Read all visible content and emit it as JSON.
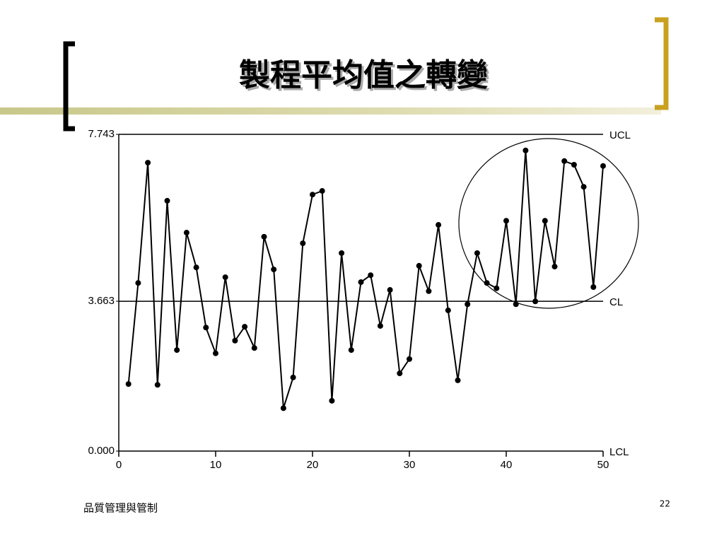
{
  "header": {
    "title": "製程平均值之轉變"
  },
  "chart_data": {
    "type": "line",
    "x": [
      1,
      2,
      3,
      4,
      5,
      6,
      7,
      8,
      9,
      10,
      11,
      12,
      13,
      14,
      15,
      16,
      17,
      18,
      19,
      20,
      21,
      22,
      23,
      24,
      25,
      26,
      27,
      28,
      29,
      30,
      31,
      32,
      33,
      34,
      35,
      36,
      37,
      38,
      39,
      40,
      41,
      42,
      43,
      44,
      45,
      46,
      47,
      48,
      49,
      50
    ],
    "values": [
      1.64,
      4.11,
      7.05,
      1.62,
      6.12,
      2.47,
      5.34,
      4.49,
      3.02,
      2.39,
      4.25,
      2.7,
      3.04,
      2.52,
      5.24,
      4.44,
      1.05,
      1.8,
      5.08,
      6.27,
      6.36,
      1.23,
      4.84,
      2.47,
      4.13,
      4.3,
      3.06,
      3.94,
      1.9,
      2.25,
      4.53,
      3.91,
      5.53,
      3.44,
      1.73,
      3.59,
      4.84,
      4.11,
      3.98,
      5.63,
      3.59,
      7.35,
      3.66,
      5.63,
      4.51,
      7.09,
      7.0,
      6.46,
      4.01,
      6.97
    ],
    "color": "#000000",
    "xlim": [
      0,
      50
    ],
    "xticks": [
      0,
      10,
      20,
      30,
      40,
      50
    ],
    "ylim": [
      0,
      7.743
    ],
    "yticks": [
      {
        "value": 0,
        "label": "0.000"
      },
      3.663,
      7.743
    ],
    "control_lines": [
      {
        "name": "UCL",
        "value": 7.743
      },
      {
        "name": "CL",
        "value": 3.663
      },
      {
        "name": "LCL",
        "value": 0
      }
    ]
  },
  "footer": {
    "text": "品質管理與管制",
    "page": "22"
  }
}
